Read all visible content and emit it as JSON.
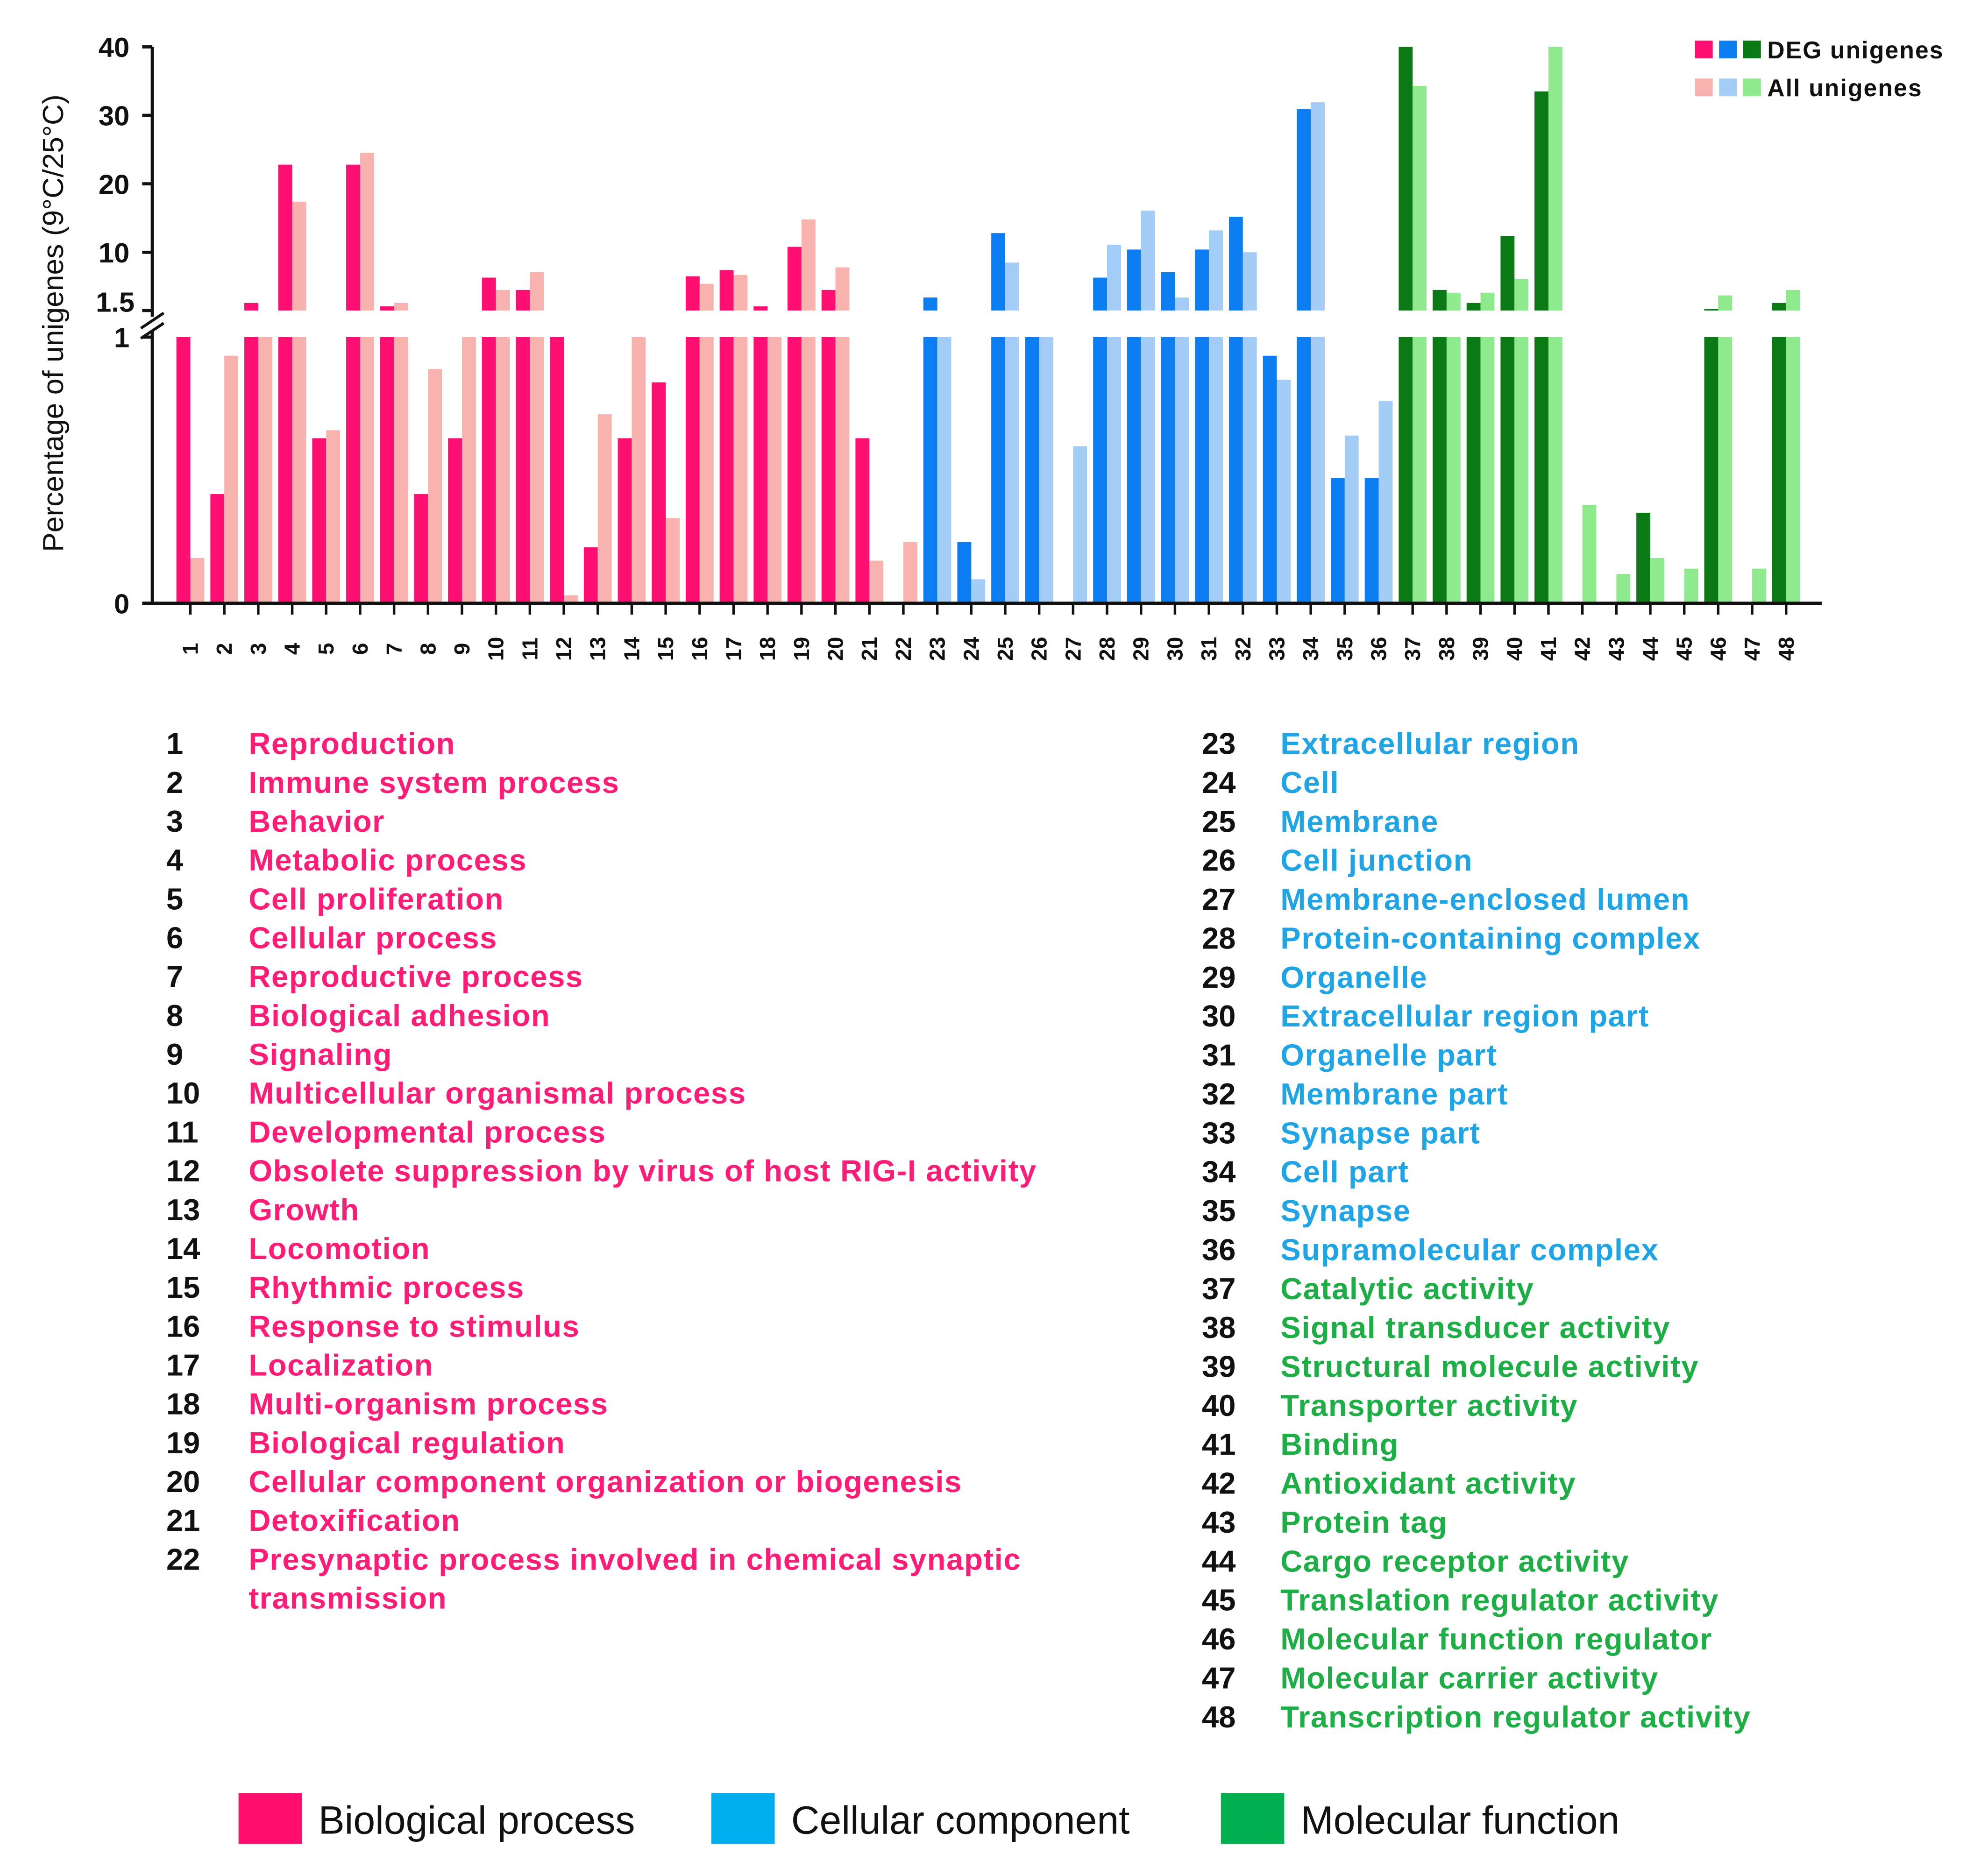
{
  "chart_data": {
    "type": "bar",
    "title": "",
    "xlabel": "",
    "ylabel": "Percentage of unigenes (9°C/25°C)",
    "lower_ylim": [
      0,
      1
    ],
    "upper_ylim": [
      1.5,
      40
    ],
    "yticks_lower": [
      0,
      1
    ],
    "yticks_upper": [
      1.5,
      10,
      20,
      30,
      40
    ],
    "legend_position": "top-right",
    "categories": [
      "1",
      "2",
      "3",
      "4",
      "5",
      "6",
      "7",
      "8",
      "9",
      "10",
      "11",
      "12",
      "13",
      "14",
      "15",
      "16",
      "17",
      "18",
      "19",
      "20",
      "21",
      "22",
      "23",
      "24",
      "25",
      "26",
      "27",
      "28",
      "29",
      "30",
      "31",
      "32",
      "33",
      "34",
      "35",
      "36",
      "37",
      "38",
      "39",
      "40",
      "41",
      "42",
      "43",
      "44",
      "45",
      "46",
      "47",
      "48"
    ],
    "series": [
      {
        "name": "DEG unigenes",
        "values": [
          1.0,
          0.41,
          2.6,
          22.8,
          0.62,
          22.8,
          2.1,
          0.41,
          0.62,
          6.3,
          4.5,
          1.0,
          0.21,
          0.62,
          0.83,
          6.5,
          7.4,
          2.1,
          10.8,
          4.5,
          0.62,
          0,
          3.4,
          0.23,
          12.8,
          1.0,
          0,
          6.3,
          10.4,
          7.1,
          10.4,
          15.2,
          0.93,
          30.9,
          0.47,
          0.47,
          40.0,
          4.5,
          2.6,
          12.4,
          33.5,
          0,
          0,
          0.34,
          0,
          1.7,
          0,
          2.6
        ]
      },
      {
        "name": "All unigenes",
        "values": [
          0.17,
          0.93,
          1.0,
          17.4,
          0.65,
          24.5,
          2.6,
          0.88,
          1.0,
          4.5,
          7.1,
          0.03,
          0.71,
          1.0,
          0.32,
          5.4,
          6.7,
          1.0,
          14.8,
          7.8,
          0.16,
          0.23,
          1.0,
          0.09,
          8.5,
          1.0,
          0.59,
          11.1,
          16.1,
          3.4,
          13.2,
          10.0,
          0.84,
          31.9,
          0.63,
          0.76,
          34.3,
          4.1,
          4.1,
          6.1,
          40.0,
          0.37,
          0.11,
          0.17,
          0.13,
          3.7,
          0.13,
          4.5
        ]
      }
    ],
    "groups": [
      {
        "name": "Biological process",
        "from": 1,
        "to": 22,
        "deg_color": "#FF0F72",
        "all_color": "#F8B3AF",
        "label_color": "#FF1C76",
        "legend_color": "#FF0E6E"
      },
      {
        "name": "Cellular component",
        "from": 23,
        "to": 36,
        "deg_color": "#0D7DF2",
        "all_color": "#A3CDF6",
        "label_color": "#1FA4E6",
        "legend_color": "#00ADEF"
      },
      {
        "name": "Molecular function",
        "from": 37,
        "to": 48,
        "deg_color": "#0C7A14",
        "all_color": "#8EEA8D",
        "label_color": "#1EAE46",
        "legend_color": "#00B050"
      }
    ]
  },
  "category_legend": {
    "names": [
      [
        "Reproduction"
      ],
      [
        "Immune system process"
      ],
      [
        "Behavior"
      ],
      [
        "Metabolic process"
      ],
      [
        "Cell proliferation"
      ],
      [
        "Cellular process"
      ],
      [
        "Reproductive process"
      ],
      [
        "Biological adhesion"
      ],
      [
        "Signaling"
      ],
      [
        "Multicellular organismal process"
      ],
      [
        "Developmental process"
      ],
      [
        "Obsolete suppression by virus of host RIG-I activity"
      ],
      [
        "Growth"
      ],
      [
        "Locomotion"
      ],
      [
        "Rhythmic process"
      ],
      [
        "Response to stimulus"
      ],
      [
        "Localization"
      ],
      [
        "Multi-organism process"
      ],
      [
        "Biological regulation"
      ],
      [
        "Cellular component organization or biogenesis"
      ],
      [
        "Detoxification"
      ],
      [
        "Presynaptic process involved in chemical synaptic",
        "transmission"
      ],
      [
        "Extracellular region"
      ],
      [
        "Cell"
      ],
      [
        "Membrane"
      ],
      [
        "Cell junction"
      ],
      [
        "Membrane-enclosed lumen"
      ],
      [
        "Protein-containing complex"
      ],
      [
        "Organelle"
      ],
      [
        "Extracellular region part"
      ],
      [
        "Organelle part"
      ],
      [
        "Membrane part"
      ],
      [
        "Synapse part"
      ],
      [
        "Cell part"
      ],
      [
        "Synapse"
      ],
      [
        "Supramolecular complex"
      ],
      [
        "Catalytic activity"
      ],
      [
        "Signal transducer activity"
      ],
      [
        "Structural molecule activity"
      ],
      [
        "Transporter activity"
      ],
      [
        "Binding"
      ],
      [
        "Antioxidant activity"
      ],
      [
        "Protein tag"
      ],
      [
        "Cargo receptor activity"
      ],
      [
        "Translation regulator activity"
      ],
      [
        "Molecular function regulator"
      ],
      [
        "Molecular carrier activity"
      ],
      [
        "Transcription regulator activity"
      ]
    ]
  }
}
